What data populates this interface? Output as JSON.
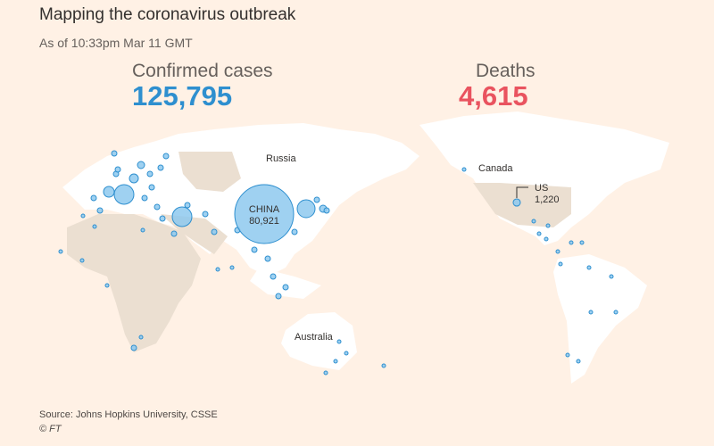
{
  "header": {
    "title": "Mapping the coronavirus outbreak",
    "subtitle": "As of 10:33pm Mar 11 GMT"
  },
  "totals": {
    "confirmed_label": "Confirmed cases",
    "confirmed_value": "125,795",
    "deaths_label": "Deaths",
    "deaths_value": "4,615"
  },
  "map": {
    "labels": [
      "Russia",
      "Canada",
      "Australia"
    ],
    "bubbles": [
      {
        "name": "CHINA",
        "value": 80921,
        "label": "80,921"
      },
      {
        "name": "US",
        "value": 1220,
        "label": "1,220"
      }
    ]
  },
  "footer": {
    "source": "Source: Johns Hopkins University, CSSE",
    "copyright": "© FT"
  }
}
